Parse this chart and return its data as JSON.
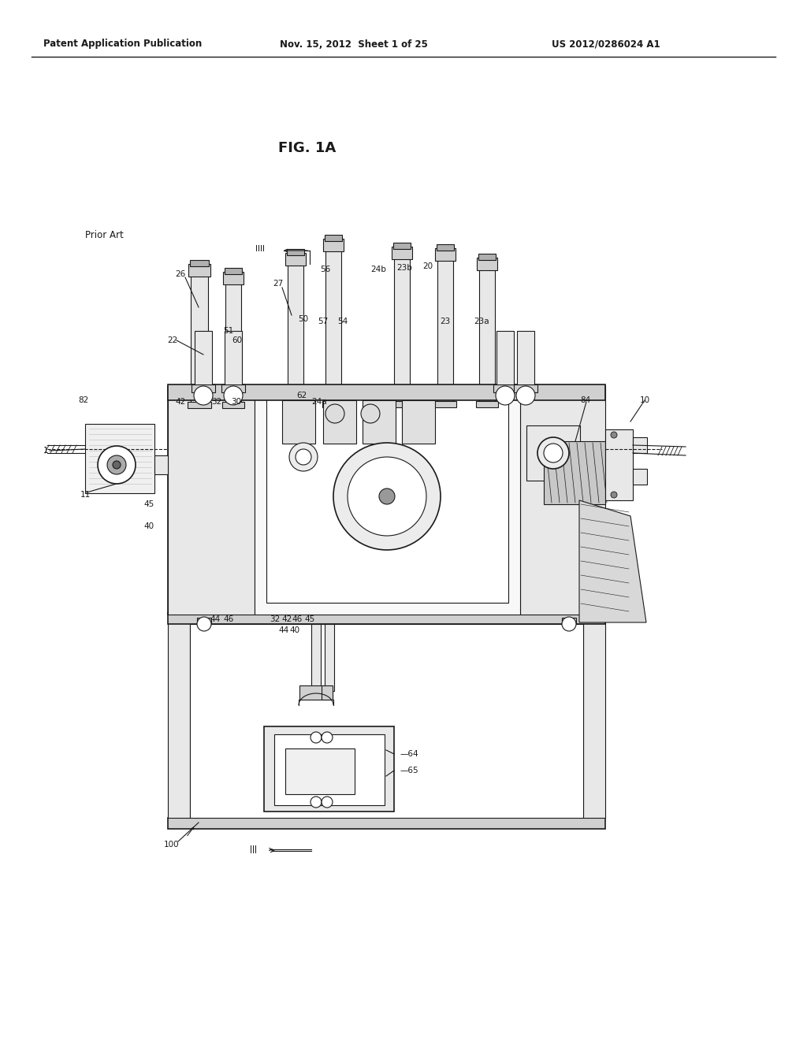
{
  "bg_color": "#ffffff",
  "header_left": "Patent Application Publication",
  "header_center": "Nov. 15, 2012  Sheet 1 of 25",
  "header_right": "US 2012/0286024 A1",
  "fig_label": "FIG. 1A",
  "prior_art_label": "Prior Art",
  "text_color": "#000000",
  "line_color": "#1a1a1a",
  "fill_light": "#e8e8e8",
  "fill_medium": "#d0d0d0",
  "fill_dark": "#b0b0b0",
  "fill_white": "#ffffff"
}
